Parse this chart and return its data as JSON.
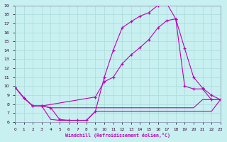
{
  "xlabel": "Windchill (Refroidissement éolien,°C)",
  "bg_color": "#c8f0f0",
  "grid_color": "#b0dede",
  "line_color": "#bb00bb",
  "xlim": [
    0,
    23
  ],
  "ylim": [
    6,
    19
  ],
  "xticks": [
    0,
    1,
    2,
    3,
    4,
    5,
    6,
    7,
    8,
    9,
    10,
    11,
    12,
    13,
    14,
    15,
    16,
    17,
    18,
    19,
    20,
    21,
    22,
    23
  ],
  "yticks": [
    6,
    7,
    8,
    9,
    10,
    11,
    12,
    13,
    14,
    15,
    16,
    17,
    18,
    19
  ],
  "curve1_x": [
    0,
    1,
    2,
    3,
    4,
    5,
    6,
    7,
    8,
    9,
    10,
    11,
    12,
    13,
    14,
    15,
    16,
    17,
    18,
    19,
    20,
    21,
    22,
    23
  ],
  "curve1_y": [
    9.9,
    8.7,
    7.8,
    7.8,
    7.6,
    6.3,
    6.2,
    6.2,
    6.2,
    7.2,
    11.0,
    14.0,
    16.5,
    17.2,
    17.8,
    18.2,
    19.0,
    19.2,
    17.5,
    10.0,
    9.7,
    9.7,
    8.5,
    8.5
  ],
  "curve2_x": [
    0,
    1,
    2,
    3,
    9,
    10,
    11,
    12,
    13,
    14,
    15,
    16,
    17,
    18,
    19,
    20,
    21,
    22,
    23
  ],
  "curve2_y": [
    9.9,
    8.7,
    7.8,
    7.8,
    8.8,
    10.5,
    11.0,
    12.5,
    13.5,
    14.3,
    15.2,
    16.5,
    17.3,
    17.5,
    14.2,
    11.0,
    9.8,
    9.0,
    8.5
  ],
  "curve3_x": [
    0,
    1,
    2,
    3,
    4,
    5,
    6,
    7,
    8,
    9,
    10,
    11,
    12,
    13,
    14,
    15,
    16,
    17,
    18,
    19,
    20,
    21,
    22,
    23
  ],
  "curve3_y": [
    9.9,
    8.7,
    7.8,
    7.8,
    7.6,
    7.6,
    7.6,
    7.6,
    7.6,
    7.6,
    7.6,
    7.6,
    7.6,
    7.6,
    7.6,
    7.6,
    7.6,
    7.6,
    7.6,
    7.6,
    7.6,
    8.5,
    8.5,
    8.5
  ],
  "curve4_x": [
    0,
    1,
    2,
    3,
    4,
    5,
    6,
    7,
    8,
    9,
    10,
    11,
    12,
    13,
    14,
    15,
    16,
    17,
    18,
    19,
    20,
    21,
    22,
    23
  ],
  "curve4_y": [
    9.9,
    8.7,
    7.8,
    7.8,
    6.3,
    6.2,
    6.2,
    6.2,
    6.2,
    7.2,
    7.2,
    7.2,
    7.2,
    7.2,
    7.2,
    7.2,
    7.2,
    7.2,
    7.2,
    7.2,
    7.2,
    7.2,
    7.2,
    8.5
  ]
}
